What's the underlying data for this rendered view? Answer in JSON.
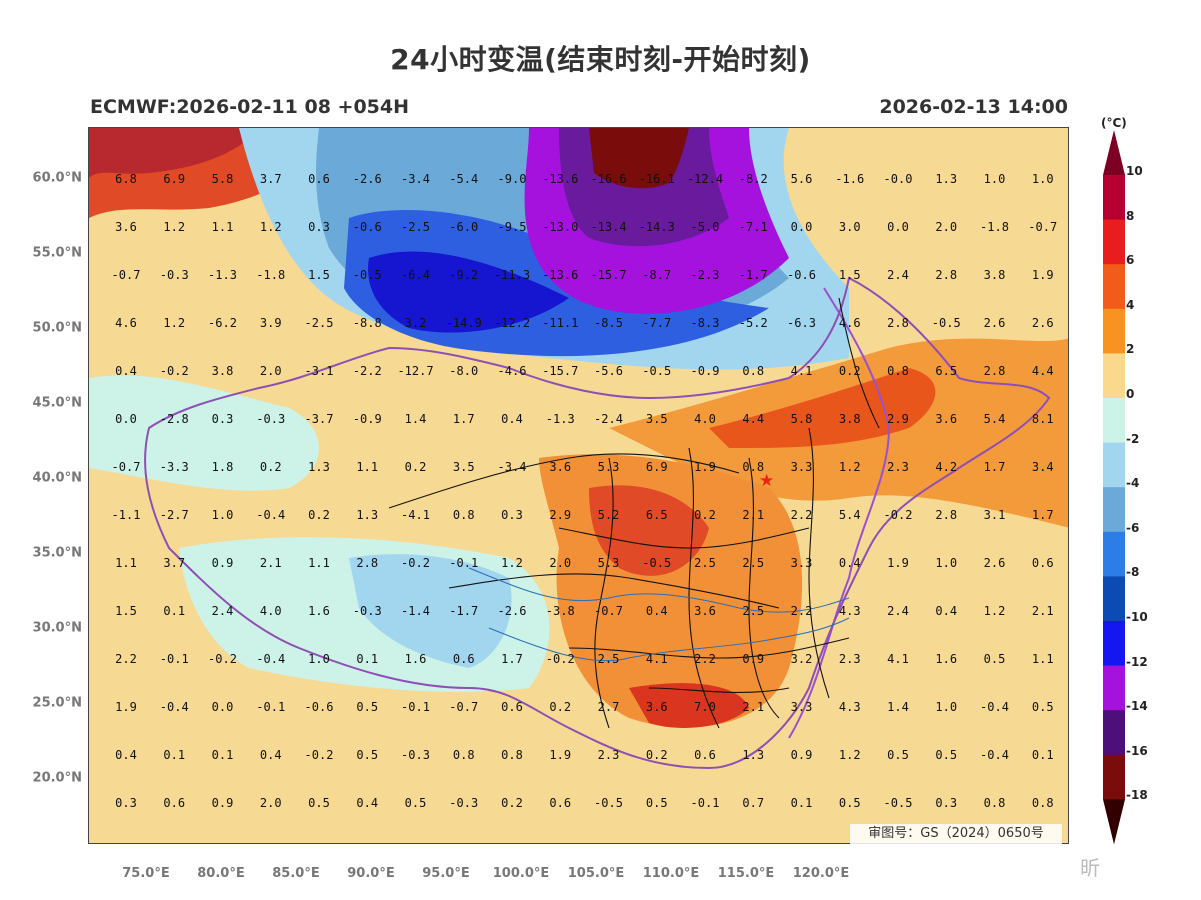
{
  "title": "24小时变温(结束时刻-开始时刻)",
  "model_run": "ECMWF:2026-02-11 08 +054H",
  "valid_time": "2026-02-13 14:00",
  "approval_number": "审图号：GS（2024）0650号",
  "watermark": "昕",
  "colorbar": {
    "unit": "(°C)",
    "labels": [
      "10",
      "8",
      "6",
      "4",
      "2",
      "0",
      "-2",
      "-4",
      "-6",
      "-8",
      "-10",
      "-12",
      "-14",
      "-16",
      "-18"
    ],
    "colors": [
      "#7d0024",
      "#b70032",
      "#e81d1d",
      "#f25c1a",
      "#f7931e",
      "#fbd98c",
      "#cdf3e8",
      "#a2d6ef",
      "#6baad8",
      "#2d7de6",
      "#0b4bb3",
      "#1616f0",
      "#a512de",
      "#4d0f7a",
      "#7a0c0c",
      "#330000"
    ]
  },
  "axes": {
    "lat_labels": [
      "60.0°N",
      "55.0°N",
      "50.0°N",
      "45.0°N",
      "40.0°N",
      "35.0°N",
      "30.0°N",
      "25.0°N",
      "20.0°N"
    ],
    "lon_labels": [
      "75.0°E",
      "80.0°E",
      "85.0°E",
      "90.0°E",
      "95.0°E",
      "100.0°E",
      "105.0°E",
      "110.0°E",
      "115.0°E",
      "120.0°E"
    ]
  },
  "grid_values": [
    [
      "6.8",
      "6.9",
      "5.8",
      "3.7",
      "0.6",
      "-2.6",
      "-3.4",
      "-5.4",
      "-9.0",
      "-13.6",
      "-16.6",
      "-16.1",
      "-12.4",
      "-8.2",
      "5.6",
      "-1.6",
      "-0.0",
      "1.3",
      "1.0",
      "1.0"
    ],
    [
      "3.6",
      "1.2",
      "1.1",
      "1.2",
      "0.3",
      "-0.6",
      "-2.5",
      "-6.0",
      "-9.5",
      "-13.0",
      "-13.4",
      "-14.3",
      "-5.0",
      "-7.1",
      "0.0",
      "3.0",
      "0.0",
      "2.0",
      "-1.8",
      "-0.7"
    ],
    [
      "-0.7",
      "-0.3",
      "-1.3",
      "-1.8",
      "1.5",
      "-0.5",
      "-6.4",
      "-9.2",
      "-11.3",
      "-13.6",
      "-15.7",
      "-8.7",
      "-2.3",
      "-1.7",
      "-0.6",
      "1.5",
      "2.4",
      "2.8",
      "3.8",
      "1.9"
    ],
    [
      "4.6",
      "1.2",
      "-6.2",
      "3.9",
      "-2.5",
      "-8.8",
      "3.2",
      "-14.9",
      "-12.2",
      "-11.1",
      "-8.5",
      "-7.7",
      "-8.3",
      "-5.2",
      "-6.3",
      "4.6",
      "2.8",
      "-0.5",
      "2.6",
      "2.6"
    ],
    [
      "0.4",
      "-0.2",
      "3.8",
      "2.0",
      "-3.1",
      "-2.2",
      "-12.7",
      "-8.0",
      "-4.6",
      "-15.7",
      "-5.6",
      "-0.5",
      "-0.9",
      "0.8",
      "4.1",
      "0.2",
      "0.8",
      "6.5",
      "2.8",
      "4.4"
    ],
    [
      "0.0",
      "-2.8",
      "0.3",
      "-0.3",
      "-3.7",
      "-0.9",
      "1.4",
      "1.7",
      "0.4",
      "-1.3",
      "-2.4",
      "3.5",
      "4.0",
      "4.4",
      "5.8",
      "3.8",
      "2.9",
      "3.6",
      "5.4",
      "8.1"
    ],
    [
      "-0.7",
      "-3.3",
      "1.8",
      "0.2",
      "1.3",
      "1.1",
      "0.2",
      "3.5",
      "-3.4",
      "3.6",
      "5.3",
      "6.9",
      "1.9",
      "0.8",
      "3.3",
      "1.2",
      "2.3",
      "4.2",
      "1.7",
      "3.4"
    ],
    [
      "-1.1",
      "-2.7",
      "1.0",
      "-0.4",
      "0.2",
      "1.3",
      "-4.1",
      "0.8",
      "0.3",
      "2.9",
      "5.2",
      "6.5",
      "0.2",
      "2.1",
      "2.2",
      "5.4",
      "-0.2",
      "2.8",
      "3.1",
      "1.7"
    ],
    [
      "1.1",
      "3.7",
      "0.9",
      "2.1",
      "1.1",
      "2.8",
      "-0.2",
      "-0.1",
      "1.2",
      "2.0",
      "5.3",
      "-0.5",
      "2.5",
      "2.5",
      "3.3",
      "0.4",
      "1.9",
      "1.0",
      "2.6",
      "0.6"
    ],
    [
      "1.5",
      "0.1",
      "2.4",
      "4.0",
      "1.6",
      "-0.3",
      "-1.4",
      "-1.7",
      "-2.6",
      "-3.8",
      "-0.7",
      "0.4",
      "3.6",
      "2.5",
      "2.2",
      "4.3",
      "2.4",
      "0.4",
      "1.2",
      "2.1"
    ],
    [
      "2.2",
      "-0.1",
      "-0.2",
      "-0.4",
      "1.0",
      "0.1",
      "1.6",
      "0.6",
      "1.7",
      "-0.2",
      "2.5",
      "4.1",
      "2.2",
      "0.9",
      "3.2",
      "2.3",
      "4.1",
      "1.6",
      "0.5",
      "1.1"
    ],
    [
      "1.9",
      "-0.4",
      "0.0",
      "-0.1",
      "-0.6",
      "0.5",
      "-0.1",
      "-0.7",
      "0.6",
      "0.2",
      "2.7",
      "3.6",
      "7.0",
      "2.1",
      "3.3",
      "4.3",
      "1.4",
      "1.0",
      "-0.4",
      "0.5"
    ],
    [
      "0.4",
      "0.1",
      "0.1",
      "0.4",
      "-0.2",
      "0.5",
      "-0.3",
      "0.8",
      "0.8",
      "1.9",
      "2.3",
      "0.2",
      "0.6",
      "1.3",
      "0.9",
      "1.2",
      "0.5",
      "0.5",
      "-0.4",
      "0.1"
    ],
    [
      "0.3",
      "0.6",
      "0.9",
      "2.0",
      "0.5",
      "0.4",
      "0.5",
      "-0.3",
      "0.2",
      "0.6",
      "-0.5",
      "0.5",
      "-0.1",
      "0.7",
      "0.1",
      "0.5",
      "-0.5",
      "0.3",
      "0.8",
      "0.8"
    ]
  ]
}
